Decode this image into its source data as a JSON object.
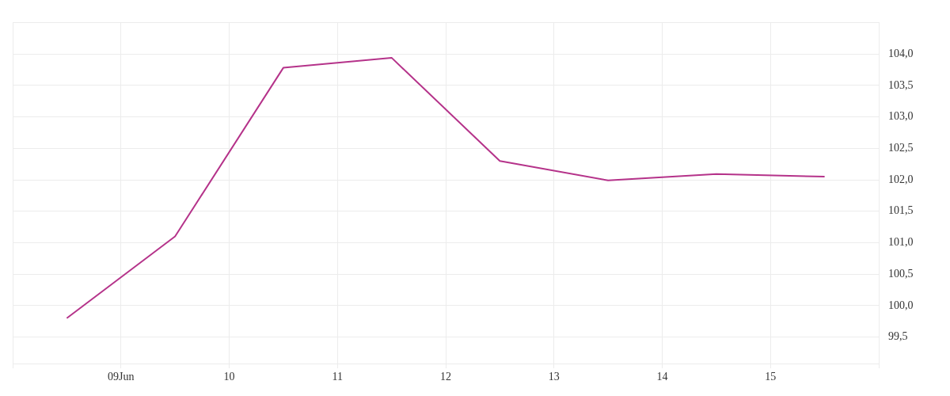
{
  "chart_data": {
    "type": "line",
    "x": [
      "--06-08T12:00",
      "--06-09T12:00",
      "--06-10T12:00",
      "--06-11T12:00",
      "--06-12T12:00",
      "--06-13T12:00",
      "--06-14T12:00",
      "--06-15T12:00"
    ],
    "series": [
      {
        "color": "#b5338a",
        "values": [
          99.8,
          101.1,
          103.78,
          103.94,
          102.3,
          101.99,
          102.09,
          102.05
        ]
      }
    ],
    "xlim": [
      "--06-08",
      "--06-16"
    ],
    "xticks": [
      {
        "value": "--06-08",
        "label": null
      },
      {
        "value": "--06-09",
        "label": "09Jun"
      },
      {
        "value": "--06-10",
        "label": "10"
      },
      {
        "value": "--06-11",
        "label": "11"
      },
      {
        "value": "--06-12",
        "label": "12"
      },
      {
        "value": "--06-13",
        "label": "13"
      },
      {
        "value": "--06-14",
        "label": "14"
      },
      {
        "value": "--06-15",
        "label": "15"
      },
      {
        "value": "--06-16",
        "label": null
      }
    ],
    "ylim": [
      99.08,
      104.5
    ],
    "yticks": [
      {
        "value": 99.5,
        "label": "99,5"
      },
      {
        "value": 100,
        "label": "100,0"
      },
      {
        "value": 100.5,
        "label": "100,5"
      },
      {
        "value": 101,
        "label": "101,0"
      },
      {
        "value": 101.5,
        "label": "101,5"
      },
      {
        "value": 102,
        "label": "102,0"
      },
      {
        "value": 102.5,
        "label": "102,5"
      },
      {
        "value": 103,
        "label": "103,0"
      },
      {
        "value": 103.5,
        "label": "103,5"
      },
      {
        "value": 104,
        "label": "104,0"
      },
      {
        "value": 104.5,
        "label": null
      }
    ],
    "grid": true,
    "legend": false,
    "marker": "none",
    "line_style": "solid"
  }
}
